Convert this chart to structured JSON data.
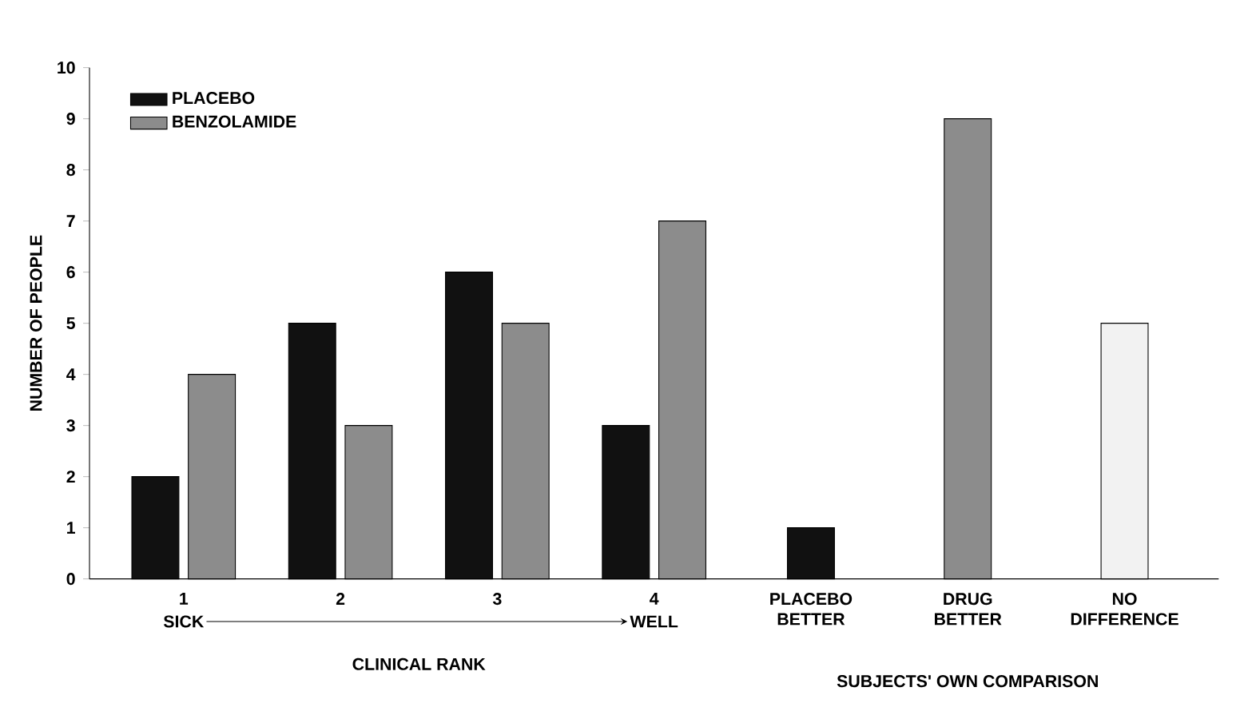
{
  "chart_data": {
    "type": "bar",
    "ylabel": "NUMBER OF PEOPLE",
    "categories": [
      "1",
      "2",
      "3",
      "4",
      "PLACEBO BETTER",
      "DRUG BETTER",
      "NO DIFFERENCE"
    ],
    "series": [
      {
        "name": "PLACEBO",
        "color": "#111111",
        "values": [
          2,
          5,
          6,
          3,
          1,
          null,
          null
        ]
      },
      {
        "name": "BENZOLAMIDE",
        "color": "#8c8c8c",
        "values": [
          4,
          3,
          5,
          7,
          null,
          9,
          null
        ]
      },
      {
        "color": "#f2f2f2",
        "values": [
          null,
          null,
          null,
          null,
          null,
          null,
          5
        ]
      }
    ],
    "ylim": [
      0,
      10
    ],
    "yticks": [
      0,
      1,
      2,
      3,
      4,
      5,
      6,
      7,
      8,
      9,
      10
    ],
    "annotations": [
      "SICK",
      "WELL",
      "CLINICAL RANK",
      "SUBJECTS' OWN COMPARISON"
    ],
    "legend": "top left",
    "grid": false
  }
}
